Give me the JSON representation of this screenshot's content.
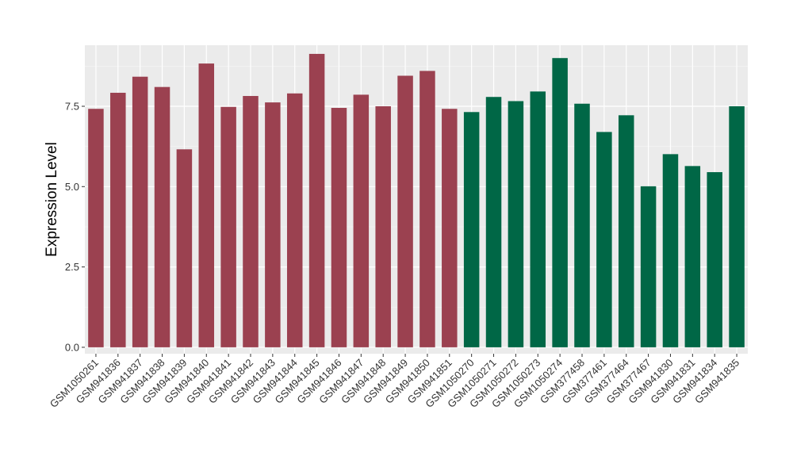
{
  "chart_data": {
    "type": "bar",
    "title": "",
    "xlabel": "",
    "ylabel": "Expression Level",
    "ylim": [
      -0.2,
      9.4
    ],
    "yticks": [
      0.0,
      2.5,
      5.0,
      7.5
    ],
    "ytick_labels": [
      "0.0",
      "2.5",
      "5.0",
      "7.5"
    ],
    "grid": true,
    "legend": "none",
    "panel_background": "#EBEBEB",
    "categories": [
      "GSM1050261",
      "GSM941836",
      "GSM941837",
      "GSM941838",
      "GSM941839",
      "GSM941840",
      "GSM941841",
      "GSM941842",
      "GSM941843",
      "GSM941844",
      "GSM941845",
      "GSM941846",
      "GSM941847",
      "GSM941848",
      "GSM941849",
      "GSM941850",
      "GSM941851",
      "GSM1050270",
      "GSM1050271",
      "GSM1050272",
      "GSM1050273",
      "GSM1050274",
      "GSM377458",
      "GSM377461",
      "GSM377464",
      "GSM377467",
      "GSM941830",
      "GSM941831",
      "GSM941834",
      "GSM941835"
    ],
    "values": [
      7.42,
      7.92,
      8.42,
      8.1,
      6.16,
      8.83,
      7.48,
      7.82,
      7.62,
      7.9,
      9.13,
      7.45,
      7.86,
      7.5,
      8.45,
      8.6,
      7.42,
      7.32,
      7.79,
      7.66,
      7.96,
      9.0,
      7.58,
      6.7,
      7.22,
      5.01,
      6.01,
      5.64,
      5.45,
      7.5
    ],
    "bar_colors": [
      "#9B4150",
      "#9B4150",
      "#9B4150",
      "#9B4150",
      "#9B4150",
      "#9B4150",
      "#9B4150",
      "#9B4150",
      "#9B4150",
      "#9B4150",
      "#9B4150",
      "#9B4150",
      "#9B4150",
      "#9B4150",
      "#9B4150",
      "#9B4150",
      "#9B4150",
      "#006746",
      "#006746",
      "#006746",
      "#006746",
      "#006746",
      "#006746",
      "#006746",
      "#006746",
      "#006746",
      "#006746",
      "#006746",
      "#006746",
      "#006746"
    ]
  }
}
